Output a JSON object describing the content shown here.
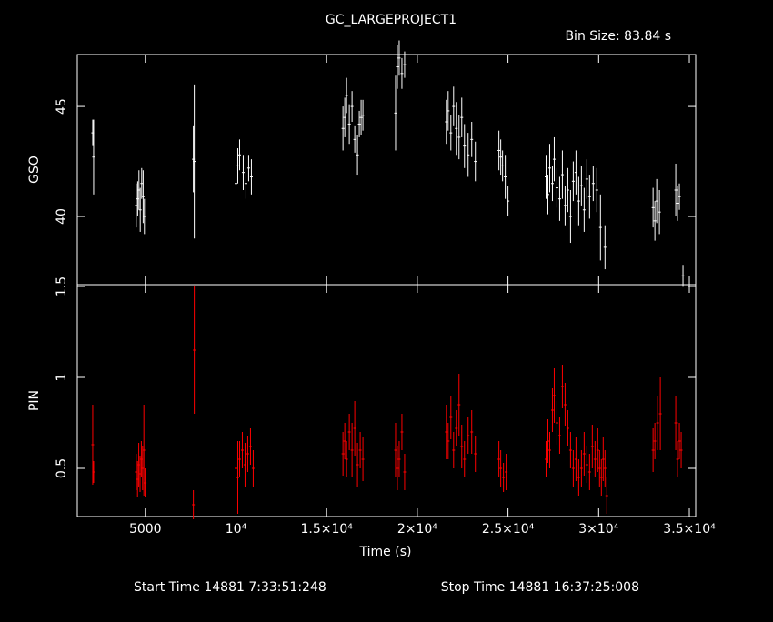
{
  "chart_data": [
    {
      "type": "errorbar",
      "title": "GC_LARGEPROJECT1",
      "subtitle": "Bin Size: 83.84 s",
      "y_label": "GSO",
      "color": "#ffffff",
      "xlim": [
        1250,
        35350
      ],
      "ylim": [
        36.9,
        47.36
      ],
      "yticks": [
        40,
        45
      ],
      "x": [
        2100,
        2150,
        4500,
        4580,
        4650,
        4720,
        4800,
        4880,
        4950,
        7650,
        7700,
        10000,
        10100,
        10200,
        10400,
        10550,
        10700,
        10850,
        15900,
        16000,
        16100,
        16250,
        16400,
        16550,
        16700,
        16800,
        16900,
        17000,
        18800,
        18900,
        19000,
        19150,
        19300,
        21600,
        21700,
        21850,
        22000,
        22150,
        22300,
        22450,
        22600,
        22800,
        23000,
        23200,
        24500,
        24600,
        24700,
        24850,
        25000,
        27100,
        27200,
        27300,
        27450,
        27550,
        27700,
        27850,
        28000,
        28150,
        28300,
        28450,
        28600,
        28750,
        28900,
        29050,
        29200,
        29350,
        29500,
        29700,
        29900,
        30100,
        30350,
        33000,
        33100,
        33200,
        33350,
        34250,
        34350,
        34450,
        34650
      ],
      "values": [
        43.8,
        42.7,
        40.5,
        40.8,
        41.2,
        40.3,
        41.5,
        40.9,
        40.0,
        42.6,
        42.5,
        41.5,
        42.3,
        42.8,
        42.0,
        41.5,
        42.2,
        41.8,
        44.0,
        44.5,
        45.5,
        44.2,
        45.0,
        43.5,
        42.8,
        44.2,
        44.5,
        44.6,
        44.7,
        46.8,
        47.2,
        46.5,
        46.9,
        44.3,
        44.8,
        43.8,
        45.0,
        44.0,
        43.6,
        44.5,
        43.2,
        42.8,
        43.5,
        42.5,
        43.0,
        42.7,
        42.3,
        41.8,
        40.7,
        41.8,
        41.0,
        42.2,
        41.5,
        42.6,
        41.3,
        40.8,
        41.9,
        40.5,
        41.2,
        40.0,
        41.6,
        42.0,
        40.7,
        41.4,
        40.3,
        41.7,
        40.9,
        41.5,
        41.2,
        39.5,
        38.6,
        40.4,
        39.8,
        40.7,
        40.2,
        41.2,
        40.6,
        40.9,
        37.3
      ],
      "errors": [
        0.6,
        1.7,
        1.0,
        0.8,
        0.9,
        1.0,
        0.7,
        1.2,
        0.8,
        1.5,
        3.5,
        2.6,
        0.8,
        0.7,
        0.8,
        0.7,
        0.6,
        0.8,
        1.0,
        0.9,
        0.8,
        0.9,
        0.7,
        0.6,
        0.9,
        0.6,
        0.8,
        0.7,
        1.7,
        1.0,
        0.8,
        0.7,
        0.6,
        1.0,
        0.9,
        0.8,
        0.9,
        1.2,
        1.0,
        0.9,
        1.0,
        1.0,
        0.8,
        0.9,
        0.9,
        0.8,
        0.7,
        1.0,
        0.7,
        1.0,
        0.9,
        1.1,
        0.8,
        1.0,
        0.9,
        1.0,
        1.1,
        0.9,
        1.0,
        1.2,
        0.9,
        1.0,
        1.1,
        0.9,
        1.0,
        0.9,
        1.0,
        0.8,
        1.0,
        1.5,
        1.0,
        0.9,
        0.9,
        1.0,
        1.0,
        1.2,
        0.8,
        0.6,
        0.5
      ]
    },
    {
      "type": "errorbar",
      "y_label": "PIN",
      "x_label": "Time (s)",
      "color": "#ff0000",
      "xlim": [
        1250,
        35350
      ],
      "ylim": [
        0.235,
        1.51
      ],
      "yticks": [
        0.5,
        1,
        1.5
      ],
      "xticks": [
        5000,
        {
          "value": 10000,
          "label": "10⁴"
        },
        {
          "value": 15000,
          "label": "1.5×10⁴"
        },
        {
          "value": 20000,
          "label": "2×10⁴"
        },
        {
          "value": 25000,
          "label": "2.5×10⁴"
        },
        {
          "value": 30000,
          "label": "3×10⁴"
        },
        {
          "value": 35000,
          "label": "3.5×10⁴"
        }
      ],
      "x": [
        2100,
        2150,
        4500,
        4570,
        4640,
        4710,
        4780,
        4850,
        4920,
        4990,
        7650,
        7700,
        10000,
        10100,
        10200,
        10350,
        10500,
        10650,
        10800,
        10950,
        15900,
        16000,
        16100,
        16250,
        16400,
        16550,
        16700,
        16850,
        17000,
        18800,
        18900,
        19000,
        19150,
        19300,
        21600,
        21700,
        21850,
        22000,
        22150,
        22300,
        22450,
        22600,
        22800,
        23000,
        23200,
        24500,
        24600,
        24750,
        24900,
        27100,
        27200,
        27300,
        27450,
        27550,
        27700,
        27850,
        28000,
        28150,
        28300,
        28450,
        28600,
        28750,
        28900,
        29050,
        29200,
        29350,
        29500,
        29650,
        29800,
        29950,
        30050,
        30150,
        30250,
        30350,
        30450,
        33000,
        33100,
        33250,
        33400,
        34250,
        34350,
        34450,
        34550
      ],
      "values": [
        0.63,
        0.48,
        0.48,
        0.44,
        0.52,
        0.47,
        0.55,
        0.5,
        0.6,
        0.42,
        0.3,
        1.15,
        0.5,
        0.45,
        0.55,
        0.6,
        0.52,
        0.58,
        0.62,
        0.5,
        0.58,
        0.65,
        0.55,
        0.7,
        0.6,
        0.72,
        0.52,
        0.6,
        0.55,
        0.6,
        0.5,
        0.55,
        0.7,
        0.48,
        0.7,
        0.65,
        0.78,
        0.6,
        0.72,
        0.85,
        0.62,
        0.55,
        0.68,
        0.7,
        0.58,
        0.55,
        0.5,
        0.45,
        0.48,
        0.55,
        0.65,
        0.6,
        0.82,
        0.9,
        0.75,
        0.68,
        0.95,
        0.85,
        0.72,
        0.6,
        0.5,
        0.55,
        0.45,
        0.5,
        0.58,
        0.52,
        0.48,
        0.62,
        0.55,
        0.6,
        0.5,
        0.45,
        0.55,
        0.5,
        0.35,
        0.6,
        0.65,
        0.75,
        0.8,
        0.75,
        0.55,
        0.65,
        0.6
      ],
      "errors": [
        0.22,
        0.06,
        0.1,
        0.1,
        0.12,
        0.1,
        0.1,
        0.12,
        0.25,
        0.08,
        0.08,
        0.35,
        0.12,
        0.2,
        0.1,
        0.1,
        0.12,
        0.1,
        0.1,
        0.1,
        0.12,
        0.1,
        0.1,
        0.1,
        0.15,
        0.15,
        0.12,
        0.1,
        0.12,
        0.15,
        0.12,
        0.1,
        0.1,
        0.1,
        0.15,
        0.1,
        0.12,
        0.1,
        0.1,
        0.17,
        0.12,
        0.1,
        0.1,
        0.12,
        0.1,
        0.1,
        0.1,
        0.08,
        0.1,
        0.1,
        0.12,
        0.1,
        0.12,
        0.15,
        0.12,
        0.1,
        0.12,
        0.12,
        0.1,
        0.1,
        0.1,
        0.12,
        0.1,
        0.1,
        0.12,
        0.1,
        0.1,
        0.12,
        0.1,
        0.12,
        0.1,
        0.1,
        0.12,
        0.1,
        0.1,
        0.12,
        0.1,
        0.15,
        0.2,
        0.15,
        0.1,
        0.1,
        0.1
      ]
    }
  ],
  "footer": {
    "start": "Start Time 14881  7:33:51:248",
    "stop": "Stop Time 14881 16:37:25:008"
  }
}
